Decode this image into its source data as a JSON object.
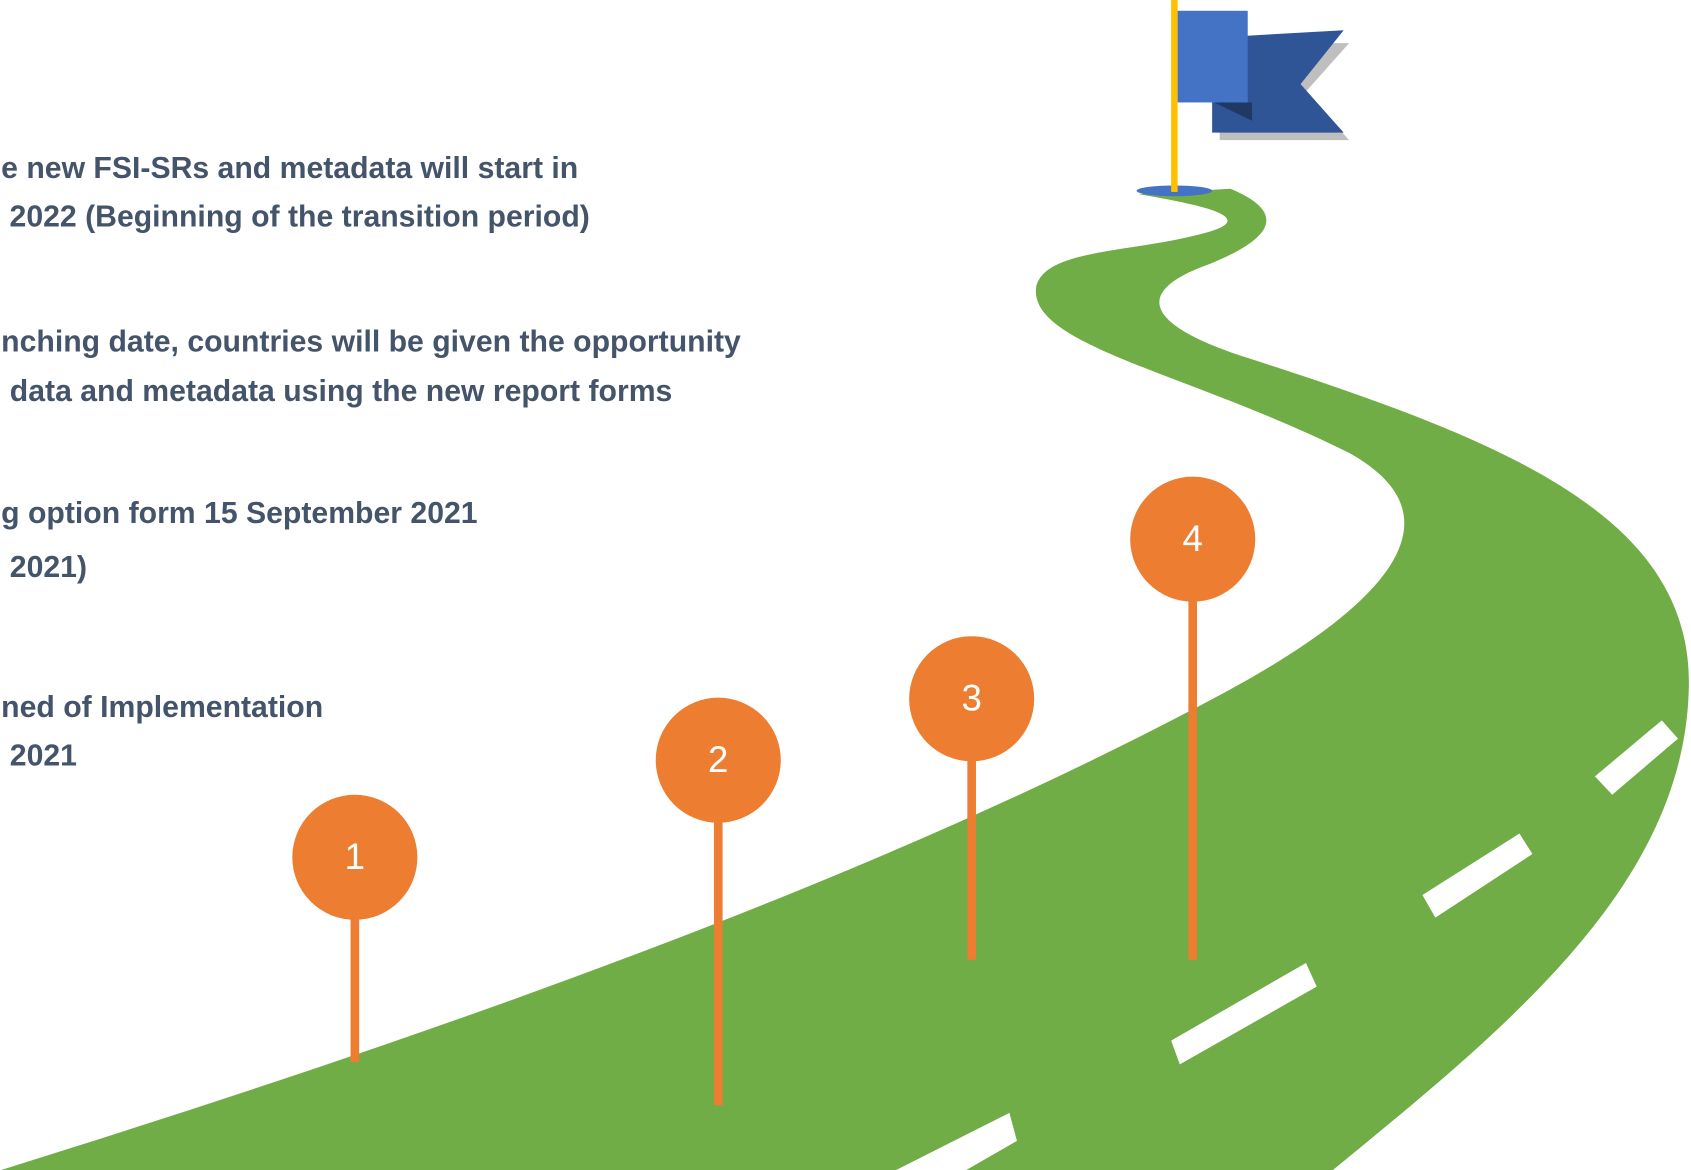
{
  "steps": [
    {
      "number": "1",
      "lines": [
        "ned of Implementation",
        "2021"
      ]
    },
    {
      "number": "2",
      "lines": [
        "g option form 15 September 2021",
        "2021)"
      ]
    },
    {
      "number": "3",
      "lines": [
        "nching date, countries will be given the opportunity",
        "data and metadata using the new report forms"
      ]
    },
    {
      "number": "4",
      "lines": [
        "e new FSI-SRs and metadata will start in",
        " 2022 (Beginning of the transition period)"
      ]
    }
  ]
}
